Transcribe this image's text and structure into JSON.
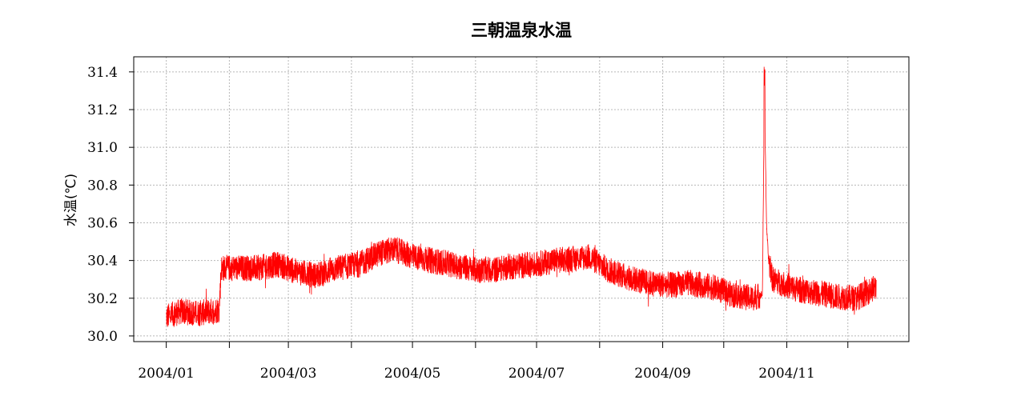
{
  "chart_data": {
    "type": "line",
    "title": "三朝温泉水温",
    "xlabel": "",
    "ylabel": "水温(℃)",
    "xlim": [
      "2003-12-16",
      "2004-12-31"
    ],
    "ylim": [
      29.97,
      31.48
    ],
    "yticks": [
      30.0,
      30.2,
      30.4,
      30.6,
      30.8,
      31.0,
      31.2,
      31.4
    ],
    "ytick_labels": [
      "30.0",
      "30.2",
      "30.4",
      "30.6",
      "30.8",
      "31.0",
      "31.2",
      "31.4"
    ],
    "xticks": [
      "2004-01-01",
      "2004-02-01",
      "2004-03-01",
      "2004-04-01",
      "2004-05-01",
      "2004-06-01",
      "2004-07-01",
      "2004-08-01",
      "2004-09-01",
      "2004-10-01",
      "2004-11-01",
      "2004-12-01"
    ],
    "xtick_labels": [
      "2004/01",
      "",
      "2004/03",
      "",
      "2004/05",
      "",
      "2004/07",
      "",
      "2004/09",
      "",
      "2004/11",
      ""
    ],
    "grid": true,
    "series": [
      {
        "color": "#ff0000",
        "noise": 0.07,
        "x": [
          "2004-01-01",
          "2004-01-08",
          "2004-01-16",
          "2004-01-23",
          "2004-01-27",
          "2004-01-28",
          "2004-02-05",
          "2004-02-15",
          "2004-02-25",
          "2004-03-05",
          "2004-03-15",
          "2004-03-25",
          "2004-04-05",
          "2004-04-15",
          "2004-04-22",
          "2004-05-01",
          "2004-05-10",
          "2004-05-20",
          "2004-06-01",
          "2004-06-10",
          "2004-06-20",
          "2004-07-01",
          "2004-07-10",
          "2004-07-20",
          "2004-07-27",
          "2004-08-05",
          "2004-08-15",
          "2004-08-25",
          "2004-09-05",
          "2004-09-15",
          "2004-09-25",
          "2004-10-05",
          "2004-10-15",
          "2004-10-20",
          "2004-10-21",
          "2004-10-22",
          "2004-10-23",
          "2004-10-25",
          "2004-11-05",
          "2004-11-15",
          "2004-11-25",
          "2004-12-05",
          "2004-12-15"
        ],
        "y": [
          30.1,
          30.13,
          30.12,
          30.13,
          30.14,
          30.36,
          30.36,
          30.36,
          30.38,
          30.34,
          30.32,
          30.36,
          30.38,
          30.44,
          30.46,
          30.42,
          30.4,
          30.38,
          30.35,
          30.35,
          30.37,
          30.38,
          30.4,
          30.41,
          30.42,
          30.35,
          30.31,
          30.28,
          30.27,
          30.28,
          30.26,
          30.22,
          30.2,
          30.22,
          31.3,
          30.6,
          30.4,
          30.3,
          30.25,
          30.23,
          30.21,
          30.2,
          30.26
        ]
      }
    ]
  }
}
